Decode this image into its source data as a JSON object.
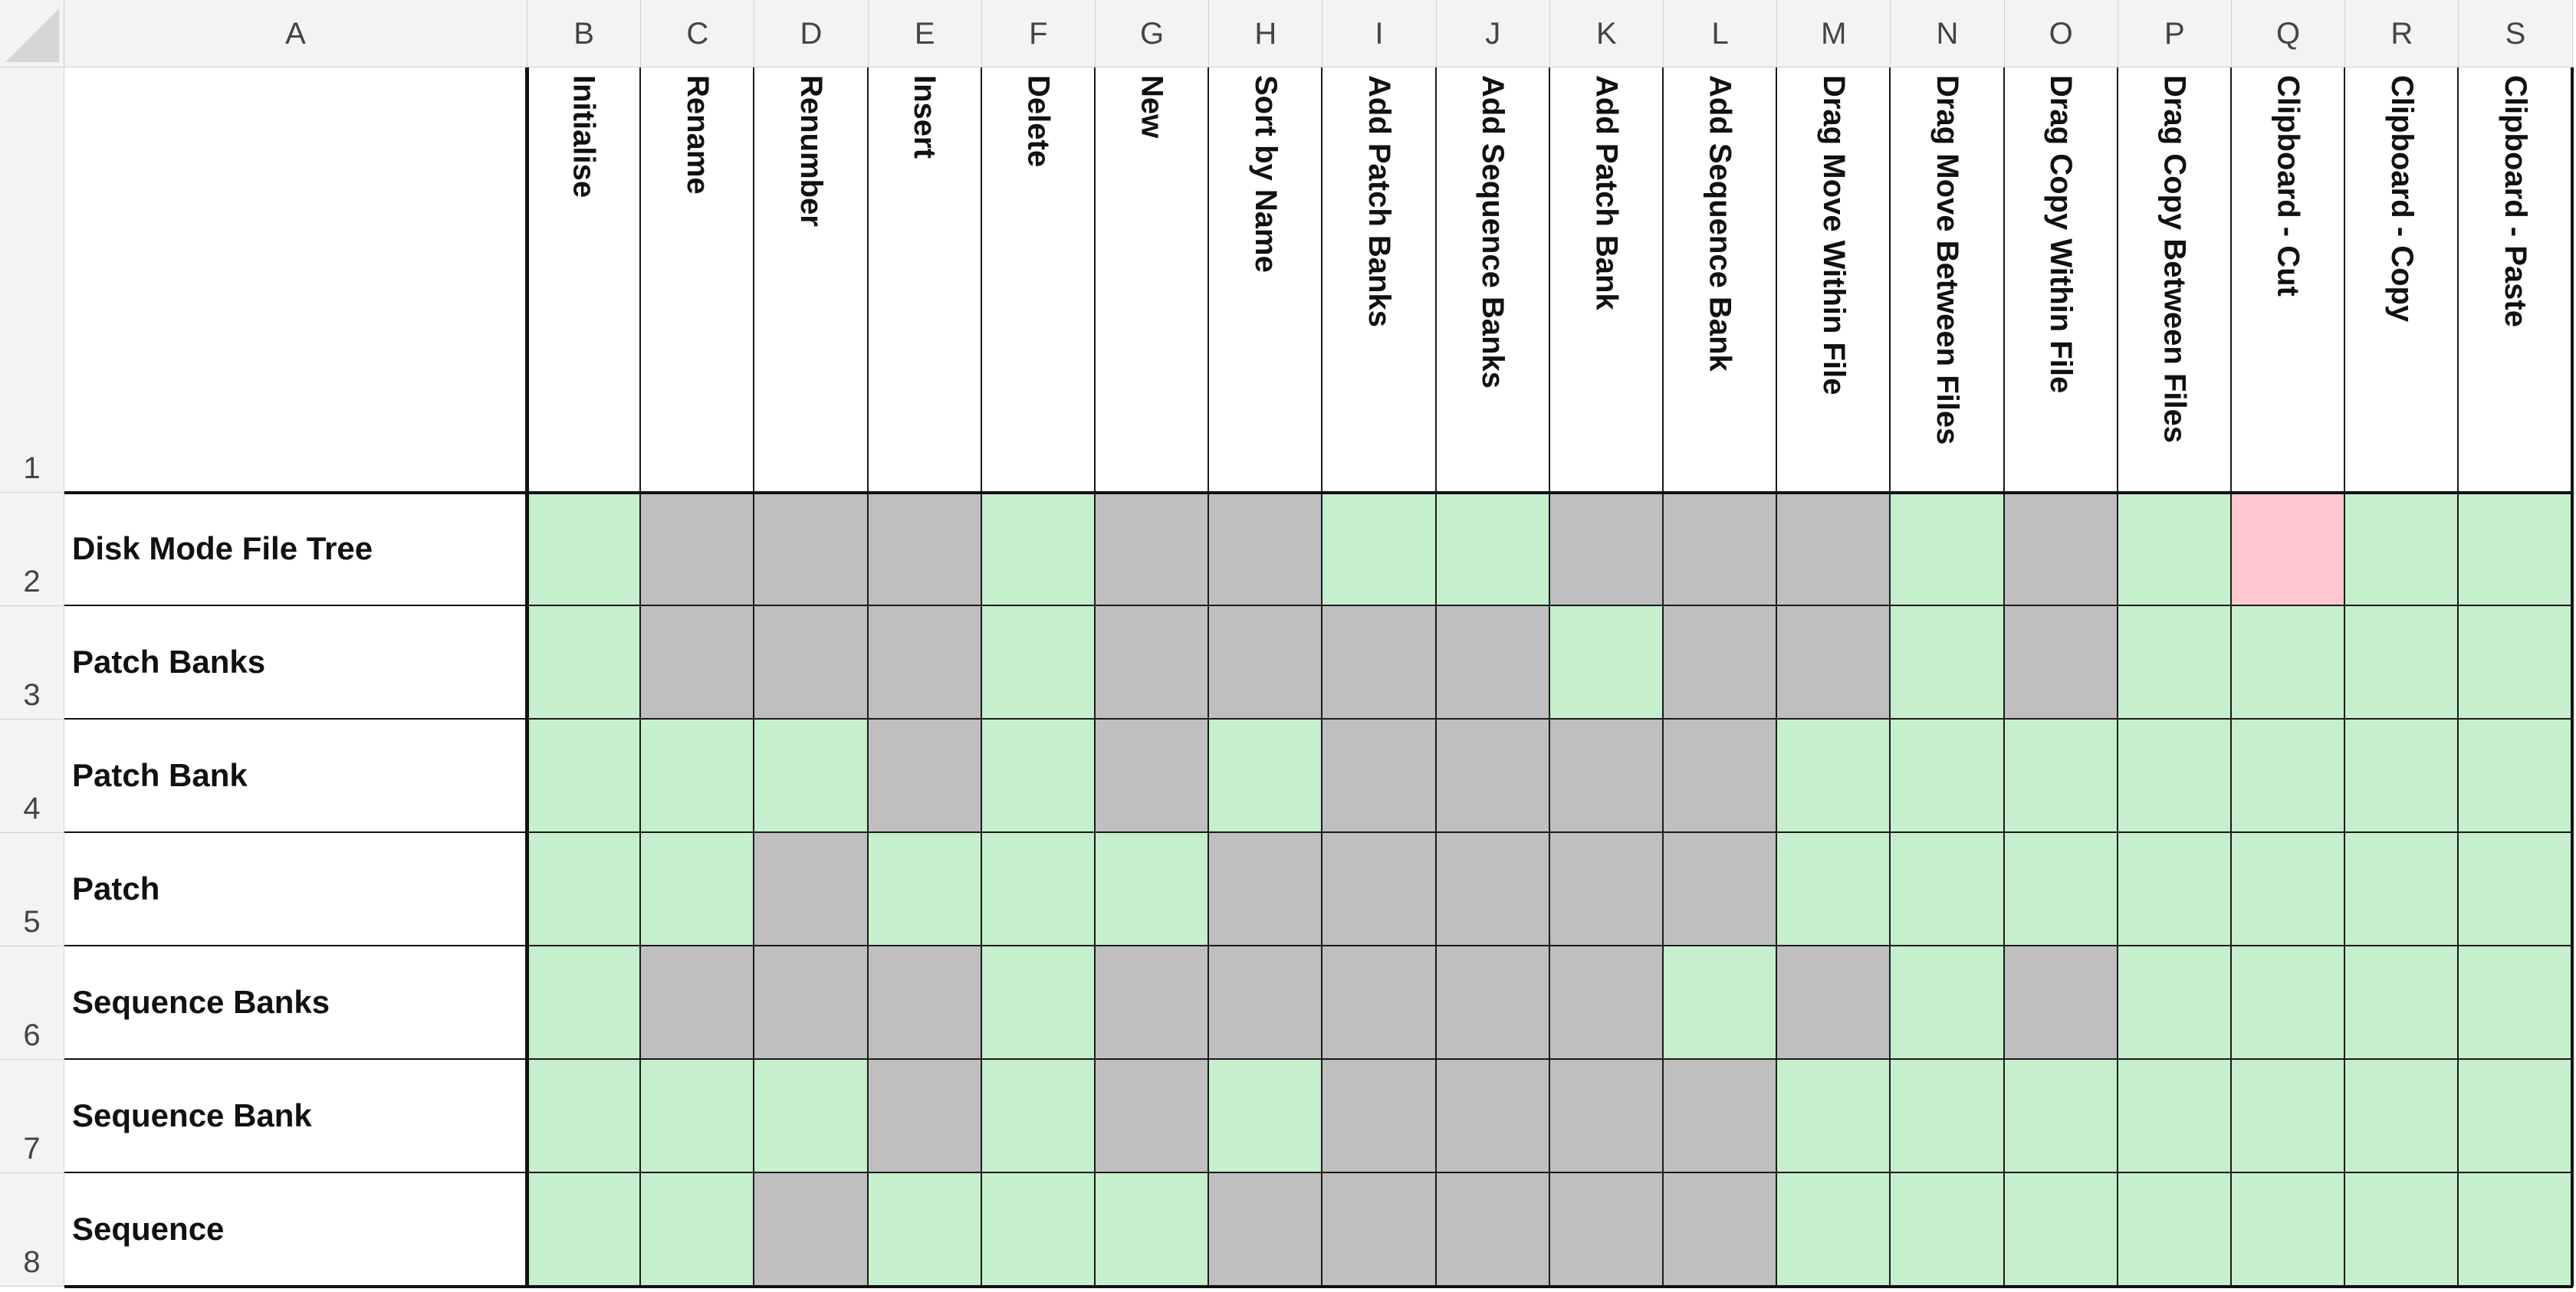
{
  "spreadsheet": {
    "column_letters": [
      "A",
      "B",
      "C",
      "D",
      "E",
      "F",
      "G",
      "H",
      "I",
      "J",
      "K",
      "L",
      "M",
      "N",
      "O",
      "P",
      "Q",
      "R",
      "S"
    ],
    "row_numbers": [
      "1",
      "2",
      "3",
      "4",
      "5",
      "6",
      "7",
      "8"
    ],
    "operations": [
      "Initialise",
      "Rename",
      "Renumber",
      "Insert",
      "Delete",
      "New",
      "Sort by Name",
      "Add Patch Banks",
      "Add Sequence Banks",
      "Add Patch Bank",
      "Add Sequence Bank",
      "Drag Move Within File",
      "Drag Move Between Files",
      "Drag Copy Within File",
      "Drag Copy Between Files",
      "Clipboard - Cut",
      "Clipboard - Copy",
      "Clipboard - Paste"
    ],
    "rows": [
      {
        "label": "Disk Mode File Tree",
        "cells": [
          "Y",
          "N",
          "N",
          "N",
          "Y",
          "N",
          "N",
          "Y",
          "Y",
          "N",
          "N",
          "N",
          "Y",
          "N",
          "Y",
          "P",
          "Y",
          "Y"
        ]
      },
      {
        "label": "Patch Banks",
        "cells": [
          "Y",
          "N",
          "N",
          "N",
          "Y",
          "N",
          "N",
          "N",
          "N",
          "Y",
          "N",
          "N",
          "Y",
          "N",
          "Y",
          "Y",
          "Y",
          "Y"
        ]
      },
      {
        "label": "Patch Bank",
        "cells": [
          "Y",
          "Y",
          "Y",
          "N",
          "Y",
          "N",
          "Y",
          "N",
          "N",
          "N",
          "N",
          "Y",
          "Y",
          "Y",
          "Y",
          "Y",
          "Y",
          "Y"
        ]
      },
      {
        "label": "Patch",
        "cells": [
          "Y",
          "Y",
          "N",
          "Y",
          "Y",
          "Y",
          "N",
          "N",
          "N",
          "N",
          "N",
          "Y",
          "Y",
          "Y",
          "Y",
          "Y",
          "Y",
          "Y"
        ]
      },
      {
        "label": "Sequence Banks",
        "cells": [
          "Y",
          "N",
          "N",
          "N",
          "Y",
          "N",
          "N",
          "N",
          "N",
          "N",
          "Y",
          "N",
          "Y",
          "N",
          "Y",
          "Y",
          "Y",
          "Y"
        ]
      },
      {
        "label": "Sequence Bank",
        "cells": [
          "Y",
          "Y",
          "Y",
          "N",
          "Y",
          "N",
          "Y",
          "N",
          "N",
          "N",
          "N",
          "Y",
          "Y",
          "Y",
          "Y",
          "Y",
          "Y",
          "Y"
        ]
      },
      {
        "label": "Sequence",
        "cells": [
          "Y",
          "Y",
          "N",
          "Y",
          "Y",
          "Y",
          "N",
          "N",
          "N",
          "N",
          "N",
          "Y",
          "Y",
          "Y",
          "Y",
          "Y",
          "Y",
          "Y"
        ]
      }
    ]
  },
  "colors": {
    "Y": "#c6efce",
    "N": "#bfbfbf",
    "P": "#ffc7ce",
    "header_bg": "#f3f3f3",
    "grid_border": "#1a1a1a"
  }
}
